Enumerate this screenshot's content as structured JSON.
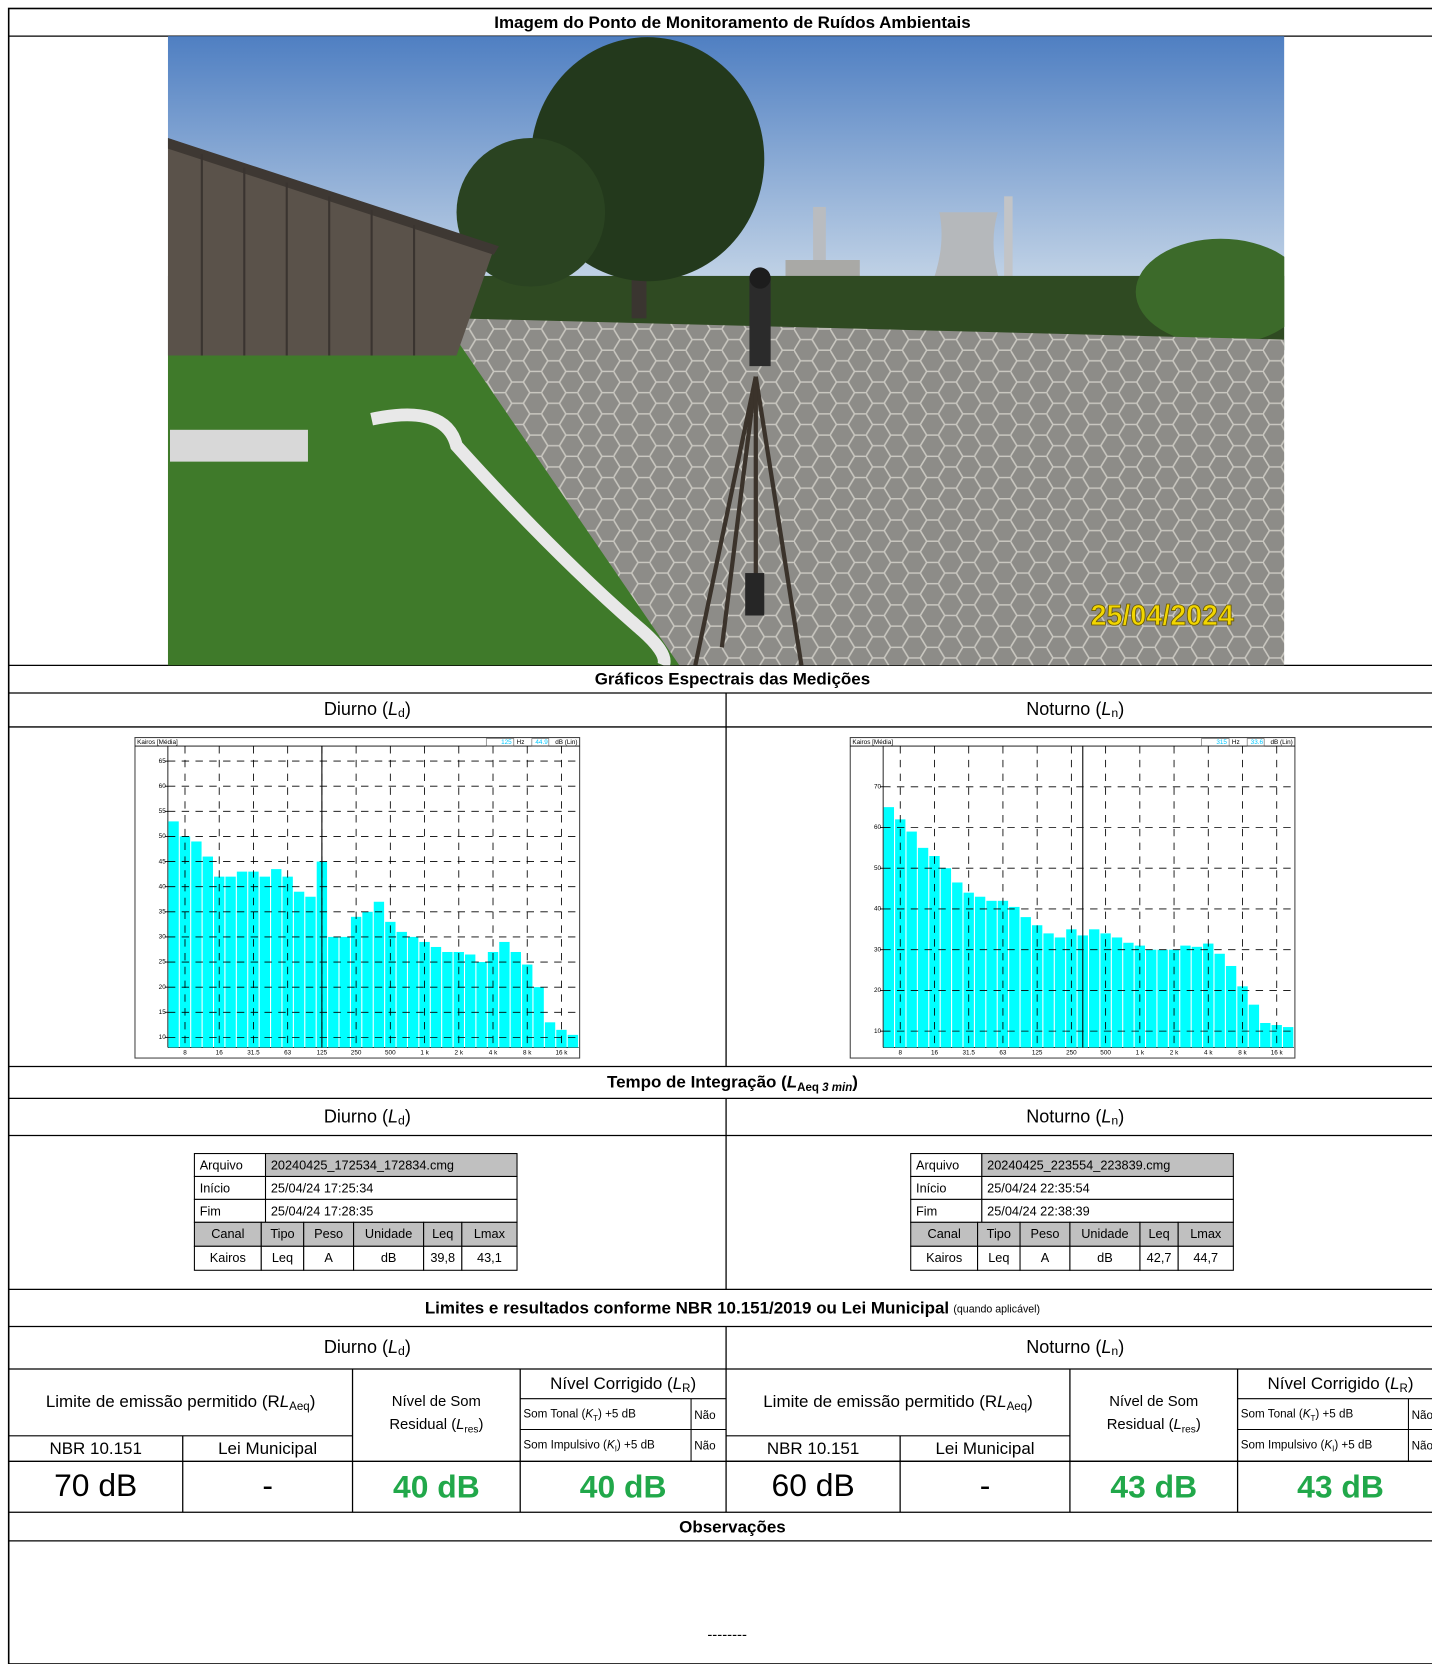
{
  "title": "Imagem do Ponto de Monitoramento de Ruídos Ambientais",
  "photo": {
    "date_stamp": "25/04/2024"
  },
  "periods": [
    {
      "pre": "Diurno (",
      "var": "L",
      "sub": "d",
      "post": ")"
    },
    {
      "pre": "Noturno (",
      "var": "L",
      "sub": "n",
      "post": ")"
    }
  ],
  "spectra_title": "Gráficos Espectrais das Medições",
  "chart_data": [
    {
      "type": "bar",
      "header": {
        "source": "Kairos [Média]",
        "frequency": "125",
        "frequency_unit": "Hz",
        "level": "44.9",
        "level_unit": "dB (Lin)"
      },
      "categories": [
        null,
        "8",
        null,
        null,
        "16",
        null,
        null,
        "31.5",
        null,
        null,
        "63",
        null,
        null,
        "125",
        null,
        null,
        "250",
        null,
        null,
        "500",
        null,
        null,
        "1 k",
        null,
        null,
        "2 k",
        null,
        null,
        "4 k",
        null,
        null,
        "8 k",
        null,
        null,
        "16 k",
        null
      ],
      "values": [
        53,
        50,
        49,
        46,
        42,
        42,
        43,
        43,
        42,
        43.5,
        42,
        39,
        38,
        45,
        30,
        30,
        34,
        35,
        37,
        33,
        31,
        30,
        29,
        28,
        27,
        27,
        26.5,
        25,
        27,
        29,
        27,
        24.5,
        20,
        13,
        11.5,
        10.5
      ],
      "color": "#00ffff",
      "ylim": [
        8,
        68
      ],
      "yticks": [
        10,
        15,
        20,
        25,
        30,
        35,
        40,
        45,
        50,
        55,
        60,
        65
      ],
      "grid": true
    },
    {
      "type": "bar",
      "header": {
        "source": "Kairos [Média]",
        "frequency": "315",
        "frequency_unit": "Hz",
        "level": "33.6",
        "level_unit": "dB (Lin)"
      },
      "categories": [
        null,
        "8",
        null,
        null,
        "16",
        null,
        null,
        "31.5",
        null,
        null,
        "63",
        null,
        null,
        "125",
        null,
        null,
        "250",
        null,
        null,
        "500",
        null,
        null,
        "1 k",
        null,
        null,
        "2 k",
        null,
        null,
        "4 k",
        null,
        null,
        "8 k",
        null,
        null,
        "16 k",
        null
      ],
      "values": [
        65,
        62,
        59,
        55,
        53,
        50,
        46.5,
        44,
        43,
        42,
        42,
        40.5,
        38,
        36,
        34,
        33,
        35,
        33.5,
        35,
        34,
        33,
        31.7,
        31,
        30,
        30,
        30,
        31,
        30.7,
        31.5,
        29,
        26,
        21,
        16.5,
        12,
        11.5,
        11
      ],
      "color": "#00ffff",
      "ylim": [
        6,
        80
      ],
      "yticks": [
        10,
        20,
        30,
        40,
        50,
        60,
        70
      ],
      "grid": true
    }
  ],
  "integration": {
    "title": {
      "pre": "Tempo de Integração (",
      "var": "L",
      "sub": "Aeq",
      "sub2": "3 min",
      "post": ")"
    },
    "files": [
      {
        "rows": [
          [
            "Arquivo",
            "20240425_172534_172834.cmg"
          ],
          [
            "Início",
            "25/04/24 17:25:34"
          ],
          [
            "Fim",
            "25/04/24 17:28:35"
          ]
        ],
        "columns": [
          "Canal",
          "Tipo",
          "Peso",
          "Unidade",
          "Leq",
          "Lmax"
        ],
        "values": [
          "Kairos",
          "Leq",
          "A",
          "dB",
          "39,8",
          "43,1"
        ]
      },
      {
        "rows": [
          [
            "Arquivo",
            "20240425_223554_223839.cmg"
          ],
          [
            "Início",
            "25/04/24 22:35:54"
          ],
          [
            "Fim",
            "25/04/24 22:38:39"
          ]
        ],
        "columns": [
          "Canal",
          "Tipo",
          "Peso",
          "Unidade",
          "Leq",
          "Lmax"
        ],
        "values": [
          "Kairos",
          "Leq",
          "A",
          "dB",
          "42,7",
          "44,7"
        ]
      }
    ]
  },
  "limits": {
    "title": "Limites e resultados conforme NBR 10.151/2019 ou Lei Municipal",
    "note": "(quando aplicável)",
    "headers": {
      "limit": {
        "pre": "Limite de emissão permitido (R",
        "var": "L",
        "sub": "Aeq",
        "post": ")"
      },
      "residual_line1": "Nível de Som",
      "residual": {
        "pre": "Residual (",
        "var": "L",
        "sub": "res",
        "post": ")"
      },
      "corrected": {
        "pre": "Nível Corrigido (",
        "var": "L",
        "sub": "R",
        "post": ")"
      },
      "tonal": {
        "pre": "Som Tonal (",
        "var": "K",
        "sub": "T",
        "post": ") +5 dB"
      },
      "impulsive": {
        "pre": "Som Impulsivo (",
        "var": "K",
        "sub": "I",
        "post": ") +5 dB"
      },
      "nbr": "NBR 10.151",
      "municipal": "Lei Municipal"
    },
    "results": [
      {
        "tonal": "Não",
        "impulsive": "Não",
        "nbr": "70 dB",
        "municipal": "-",
        "residual": "40 dB",
        "corrected": "40 dB"
      },
      {
        "tonal": "Não",
        "impulsive": "Não",
        "nbr": "60 dB",
        "municipal": "-",
        "residual": "43 dB",
        "corrected": "43 dB"
      }
    ]
  },
  "observations": {
    "title": "Observações",
    "text": "--------"
  }
}
